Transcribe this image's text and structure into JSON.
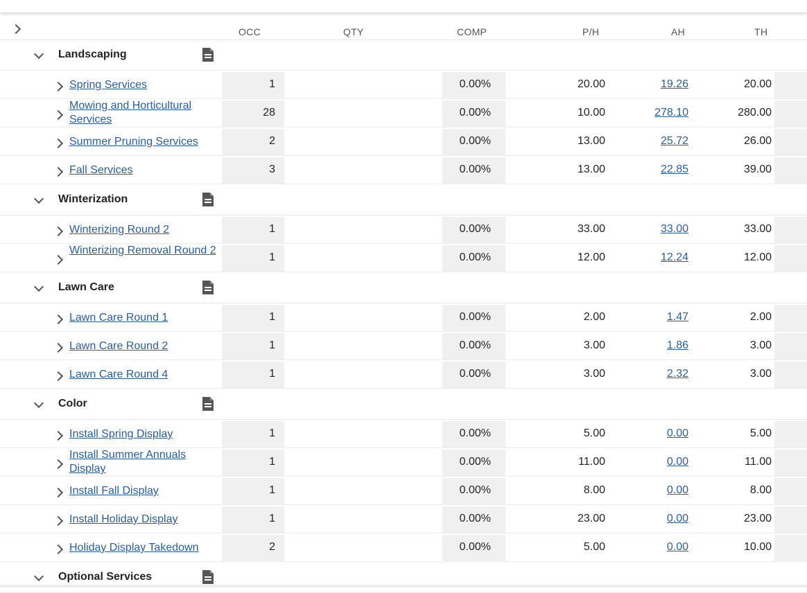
{
  "header": {
    "occ": "OCC",
    "qty": "QTY",
    "comp": "COMP",
    "ph": "P/H",
    "ah": "AH",
    "th": "TH"
  },
  "groups": [
    {
      "name": "Landscaping",
      "items": [
        {
          "name": "Spring Services",
          "occ": "1",
          "comp": "0.00%",
          "ph": "20.00",
          "ah": "19.26",
          "th": "20.00"
        },
        {
          "name": "Mowing and Horticultural Services",
          "occ": "28",
          "comp": "0.00%",
          "ph": "10.00",
          "ah": "278.10",
          "th": "280.00"
        },
        {
          "name": "Summer Pruning Services",
          "occ": "2",
          "comp": "0.00%",
          "ph": "13.00",
          "ah": "25.72",
          "th": "26.00"
        },
        {
          "name": "Fall Services",
          "occ": "3",
          "comp": "0.00%",
          "ph": "13.00",
          "ah": "22.85",
          "th": "39.00"
        }
      ]
    },
    {
      "name": "Winterization",
      "items": [
        {
          "name": "Winterizing Round 2",
          "occ": "1",
          "comp": "0.00%",
          "ph": "33.00",
          "ah": "33.00",
          "th": "33.00"
        },
        {
          "name": "Winterizing Removal Round 2",
          "occ": "1",
          "comp": "0.00%",
          "ph": "12.00",
          "ah": "12.24",
          "th": "12.00"
        }
      ]
    },
    {
      "name": "Lawn Care",
      "items": [
        {
          "name": "Lawn Care Round 1",
          "occ": "1",
          "comp": "0.00%",
          "ph": "2.00",
          "ah": "1.47",
          "th": "2.00"
        },
        {
          "name": "Lawn Care Round 2",
          "occ": "1",
          "comp": "0.00%",
          "ph": "3.00",
          "ah": "1.86",
          "th": "3.00"
        },
        {
          "name": "Lawn Care Round 4",
          "occ": "1",
          "comp": "0.00%",
          "ph": "3.00",
          "ah": "2.32",
          "th": "3.00"
        }
      ]
    },
    {
      "name": "Color",
      "items": [
        {
          "name": "Install Spring Display",
          "occ": "1",
          "comp": "0.00%",
          "ph": "5.00",
          "ah": "0.00",
          "th": "5.00"
        },
        {
          "name": "Install Summer Annuals Display",
          "occ": "1",
          "comp": "0.00%",
          "ph": "11.00",
          "ah": "0.00",
          "th": "11.00"
        },
        {
          "name": "Install Fall Display",
          "occ": "1",
          "comp": "0.00%",
          "ph": "8.00",
          "ah": "0.00",
          "th": "8.00"
        },
        {
          "name": "Install Holiday Display",
          "occ": "1",
          "comp": "0.00%",
          "ph": "23.00",
          "ah": "0.00",
          "th": "23.00"
        },
        {
          "name": "Holiday Display Takedown",
          "occ": "2",
          "comp": "0.00%",
          "ph": "5.00",
          "ah": "0.00",
          "th": "10.00"
        }
      ]
    },
    {
      "name": "Optional Services",
      "items": []
    }
  ],
  "colors": {
    "link": "#2a5d9f",
    "cell_shade": "#f0f0f0",
    "icon": "#555555"
  }
}
